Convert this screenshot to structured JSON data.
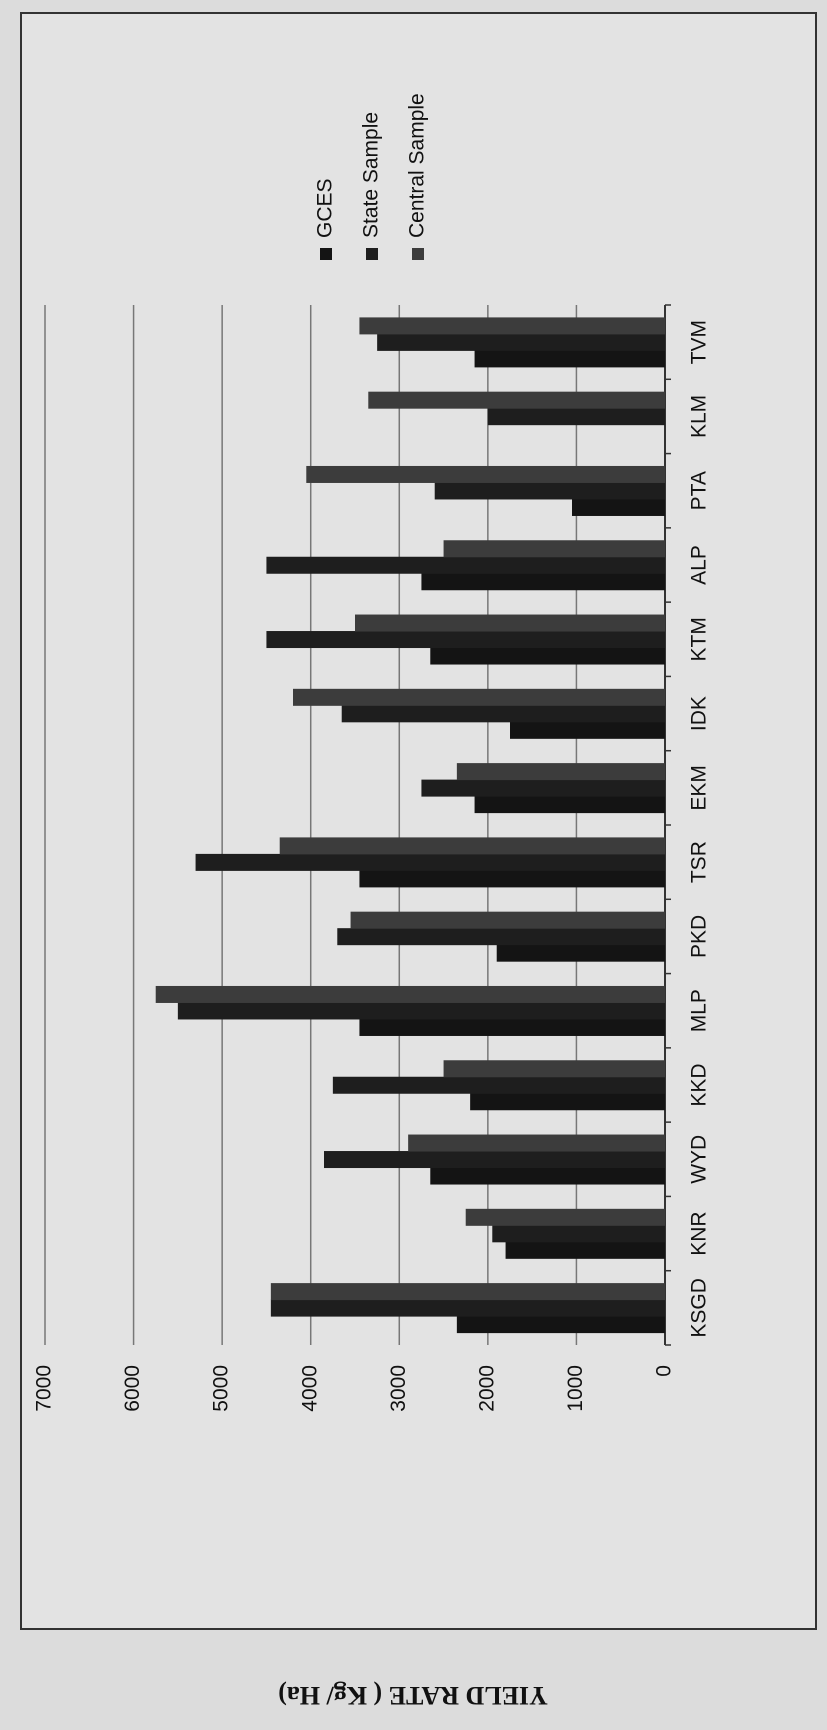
{
  "chart_data": {
    "type": "bar",
    "orientation": "horizontal",
    "categories": [
      "TVM",
      "KLM",
      "PTA",
      "ALP",
      "KTM",
      "IDK",
      "EKM",
      "TSR",
      "PKD",
      "MLP",
      "KKD",
      "WYD",
      "KNR",
      "KSGD"
    ],
    "series": [
      {
        "name": "GCES",
        "color": "#141414",
        "values": [
          2150,
          0,
          1050,
          2750,
          2650,
          1750,
          2150,
          3450,
          1900,
          3450,
          2200,
          2650,
          1800,
          2350
        ]
      },
      {
        "name": "State Sample",
        "color": "#1e1e1e",
        "values": [
          3250,
          2000,
          2600,
          4500,
          4500,
          3650,
          2750,
          5300,
          3700,
          5500,
          3750,
          3850,
          1950,
          4450
        ]
      },
      {
        "name": "Central Sample",
        "color": "#3c3c3c",
        "values": [
          3450,
          3350,
          4050,
          2500,
          3500,
          4200,
          2350,
          4350,
          3550,
          5750,
          2500,
          2900,
          2250,
          4450
        ]
      }
    ],
    "ylabel": "YIELD RATE ( Kg/ Ha)",
    "xlabel": "",
    "ylim": [
      0,
      7000
    ],
    "yticks": [
      0,
      1000,
      2000,
      3000,
      4000,
      5000,
      6000,
      7000
    ],
    "grid": true,
    "legend": "top-right",
    "rotated": "90 degrees clockwise"
  }
}
